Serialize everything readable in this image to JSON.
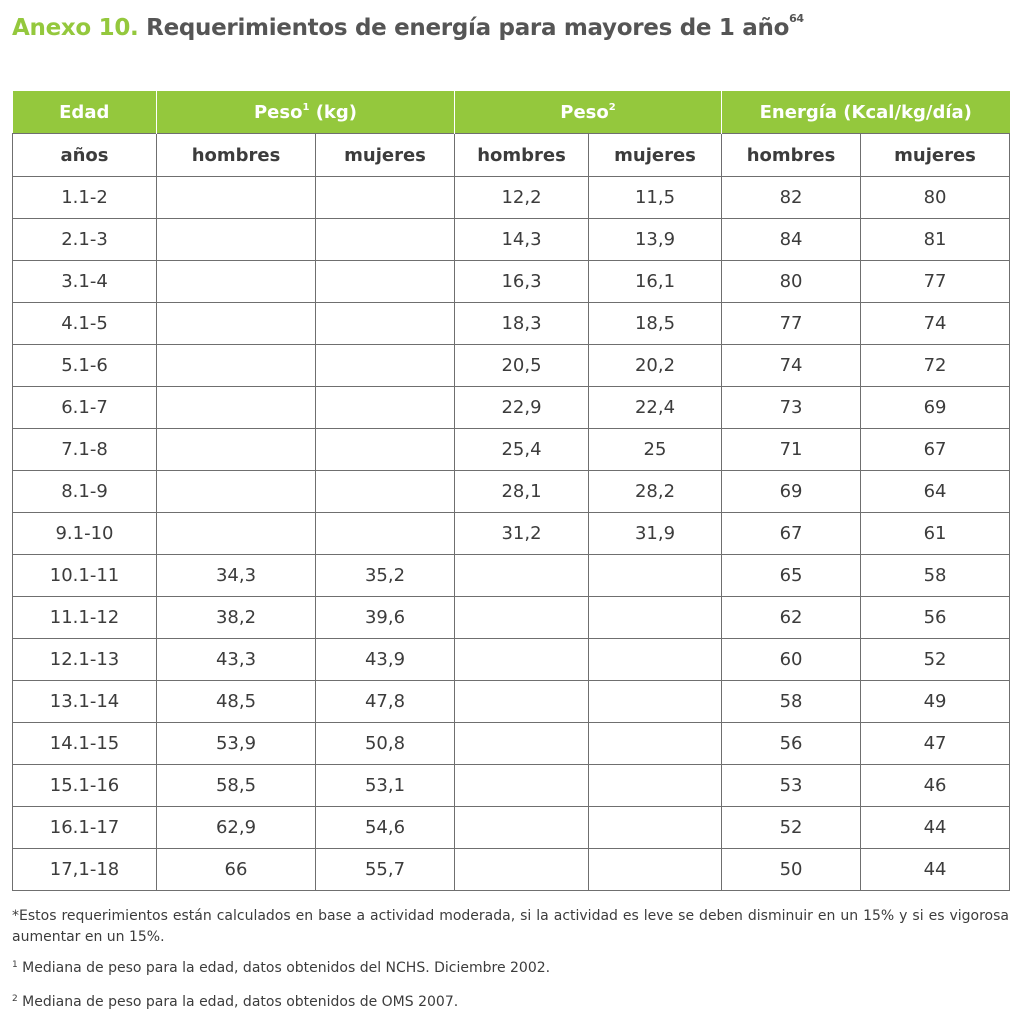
{
  "title": {
    "prefix": "Anexo 10.",
    "text": " Requerimientos de energía para mayores de 1 año",
    "sup": "64"
  },
  "table": {
    "group_headers": {
      "edad": "Edad",
      "peso1": "Peso",
      "peso1_sup": "1",
      "peso1_unit": " (kg)",
      "peso2": "Peso",
      "peso2_sup": "2",
      "energia": "Energía (Kcal/kg/día)"
    },
    "sub_headers": [
      "años",
      "hombres",
      "mujeres",
      "hombres",
      "mujeres",
      "hombres",
      "mujeres"
    ],
    "rows": [
      [
        "1.1-2",
        "",
        "",
        "12,2",
        "11,5",
        "82",
        "80"
      ],
      [
        "2.1-3",
        "",
        "",
        "14,3",
        "13,9",
        "84",
        "81"
      ],
      [
        "3.1-4",
        "",
        "",
        "16,3",
        "16,1",
        "80",
        "77"
      ],
      [
        "4.1-5",
        "",
        "",
        "18,3",
        "18,5",
        "77",
        "74"
      ],
      [
        "5.1-6",
        "",
        "",
        "20,5",
        "20,2",
        "74",
        "72"
      ],
      [
        "6.1-7",
        "",
        "",
        "22,9",
        "22,4",
        "73",
        "69"
      ],
      [
        "7.1-8",
        "",
        "",
        "25,4",
        "25",
        "71",
        "67"
      ],
      [
        "8.1-9",
        "",
        "",
        "28,1",
        "28,2",
        "69",
        "64"
      ],
      [
        "9.1-10",
        "",
        "",
        "31,2",
        "31,9",
        "67",
        "61"
      ],
      [
        "10.1-11",
        "34,3",
        "35,2",
        "",
        "",
        "65",
        "58"
      ],
      [
        "11.1-12",
        "38,2",
        "39,6",
        "",
        "",
        "62",
        "56"
      ],
      [
        "12.1-13",
        "43,3",
        "43,9",
        "",
        "",
        "60",
        "52"
      ],
      [
        "13.1-14",
        "48,5",
        "47,8",
        "",
        "",
        "58",
        "49"
      ],
      [
        "14.1-15",
        "53,9",
        "50,8",
        "",
        "",
        "56",
        "47"
      ],
      [
        "15.1-16",
        "58,5",
        "53,1",
        "",
        "",
        "53",
        "46"
      ],
      [
        "16.1-17",
        "62,9",
        "54,6",
        "",
        "",
        "52",
        "44"
      ],
      [
        "17,1-18",
        "66",
        "55,7",
        "",
        "",
        "50",
        "44"
      ]
    ]
  },
  "notes": {
    "main": "*Estos requerimientos están calculados en base a actividad moderada, si la actividad es leve se deben disminuir en un 15% y si es vigorosa aumentar en un 15%.",
    "note1_marker": "1",
    "note1": " Mediana de peso para la edad, datos obtenidos del NCHS. Diciembre 2002.",
    "note2_marker": "2",
    "note2": " Mediana de peso para la edad, datos obtenidos de OMS 2007."
  }
}
